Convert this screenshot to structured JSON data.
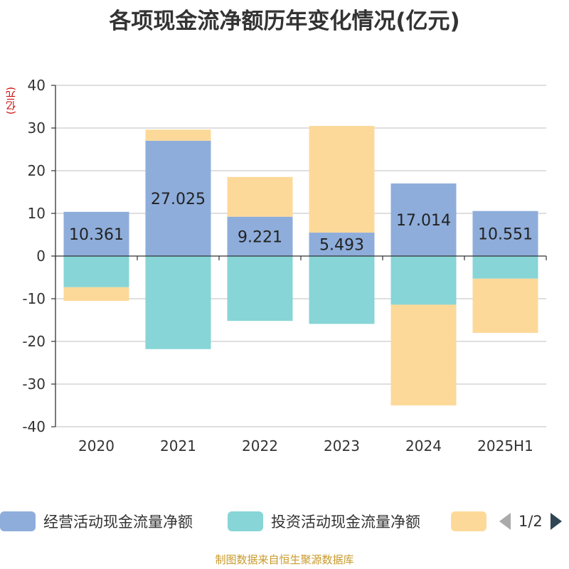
{
  "title": "各项现金流净额历年变化情况(亿元)",
  "unit_label": "(亿元)",
  "source_text": "制图数据来自恒生聚源数据库",
  "colors": {
    "operating": "#8eaddb",
    "investing": "#87d5d6",
    "financing": "#fdd999",
    "axis": "#333333",
    "grid": "#cccccc"
  },
  "legend": {
    "items": [
      {
        "label": "经营活动现金流量净额",
        "color": "#8eaddb"
      },
      {
        "label": "投资活动现金流量净额",
        "color": "#87d5d6"
      },
      {
        "label": "",
        "color": "#fdd999"
      }
    ],
    "page_text": "1/2"
  },
  "chart_data": {
    "type": "bar",
    "stacked": true,
    "categories": [
      "2020",
      "2021",
      "2022",
      "2023",
      "2024",
      "2025H1"
    ],
    "ylim": [
      -40,
      40
    ],
    "yticks": [
      40,
      30,
      20,
      10,
      0,
      -10,
      -20,
      -30,
      -40
    ],
    "grid": true,
    "series": [
      {
        "name": "经营活动现金流量净额",
        "values": [
          10.361,
          27.025,
          9.221,
          5.493,
          17.014,
          10.551
        ],
        "labels": [
          "10.361",
          "27.025",
          "9.221",
          "5.493",
          "17.014",
          "10.551"
        ]
      },
      {
        "name": "投资活动现金流量净额",
        "values": [
          -7.3,
          -21.8,
          -15.2,
          -15.9,
          -11.4,
          -5.3
        ]
      },
      {
        "values": [
          -3.2,
          2.6,
          9.3,
          25.0,
          -23.6,
          -12.7
        ]
      }
    ]
  }
}
